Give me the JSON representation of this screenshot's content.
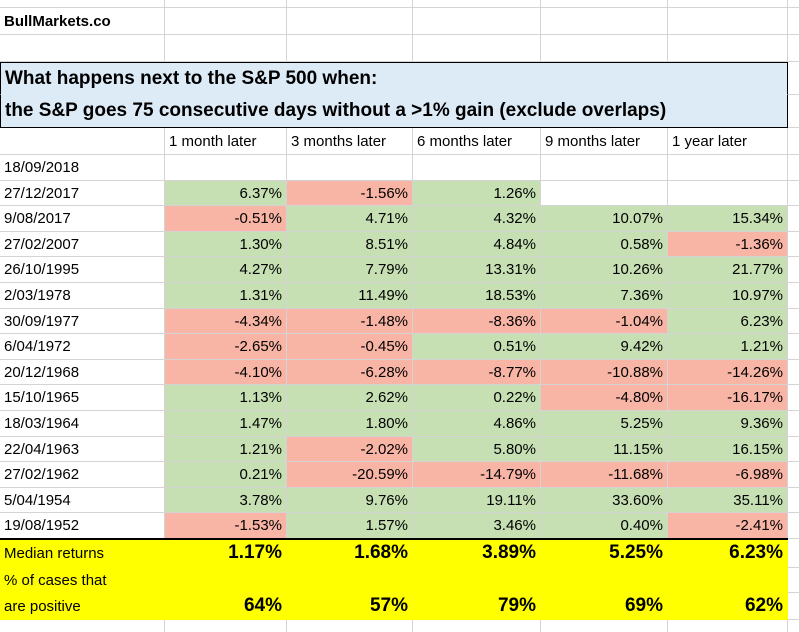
{
  "header": {
    "site": "BullMarkets.co"
  },
  "title": {
    "line1": "What happens next to the S&P 500 when:",
    "line2": "the S&P goes 75 consecutive days without a >1% gain (exclude overlaps)"
  },
  "table": {
    "columns": [
      "1 month later",
      "3 months later",
      "6 months later",
      "9 months later",
      "1 year later"
    ],
    "rows": [
      {
        "date": "18/09/2018",
        "values": [
          null,
          null,
          null,
          null,
          null
        ]
      },
      {
        "date": "27/12/2017",
        "values": [
          "6.37%",
          "-1.56%",
          "1.26%",
          null,
          null
        ]
      },
      {
        "date": "9/08/2017",
        "values": [
          "-0.51%",
          "4.71%",
          "4.32%",
          "10.07%",
          "15.34%"
        ]
      },
      {
        "date": "27/02/2007",
        "values": [
          "1.30%",
          "8.51%",
          "4.84%",
          "0.58%",
          "-1.36%"
        ]
      },
      {
        "date": "26/10/1995",
        "values": [
          "4.27%",
          "7.79%",
          "13.31%",
          "10.26%",
          "21.77%"
        ]
      },
      {
        "date": "2/03/1978",
        "values": [
          "1.31%",
          "11.49%",
          "18.53%",
          "7.36%",
          "10.97%"
        ]
      },
      {
        "date": "30/09/1977",
        "values": [
          "-4.34%",
          "-1.48%",
          "-8.36%",
          "-1.04%",
          "6.23%"
        ]
      },
      {
        "date": "6/04/1972",
        "values": [
          "-2.65%",
          "-0.45%",
          "0.51%",
          "9.42%",
          "1.21%"
        ]
      },
      {
        "date": "20/12/1968",
        "values": [
          "-4.10%",
          "-6.28%",
          "-8.77%",
          "-10.88%",
          "-14.26%"
        ]
      },
      {
        "date": "15/10/1965",
        "values": [
          "1.13%",
          "2.62%",
          "0.22%",
          "-4.80%",
          "-16.17%"
        ]
      },
      {
        "date": "18/03/1964",
        "values": [
          "1.47%",
          "1.80%",
          "4.86%",
          "5.25%",
          "9.36%"
        ]
      },
      {
        "date": "22/04/1963",
        "values": [
          "1.21%",
          "-2.02%",
          "5.80%",
          "11.15%",
          "16.15%"
        ]
      },
      {
        "date": "27/02/1962",
        "values": [
          "0.21%",
          "-20.59%",
          "-14.79%",
          "-11.68%",
          "-6.98%"
        ]
      },
      {
        "date": "5/04/1954",
        "values": [
          "3.78%",
          "9.76%",
          "19.11%",
          "33.60%",
          "35.11%"
        ]
      },
      {
        "date": "19/08/1952",
        "values": [
          "-1.53%",
          "1.57%",
          "3.46%",
          "0.40%",
          "-2.41%"
        ]
      }
    ]
  },
  "summary": {
    "median": {
      "label": "Median returns",
      "values": [
        "1.17%",
        "1.68%",
        "3.89%",
        "5.25%",
        "6.23%"
      ]
    },
    "positive": {
      "label": [
        "% of cases that",
        "are positive"
      ],
      "values": [
        "64%",
        "57%",
        "79%",
        "69%",
        "62%"
      ]
    }
  }
}
